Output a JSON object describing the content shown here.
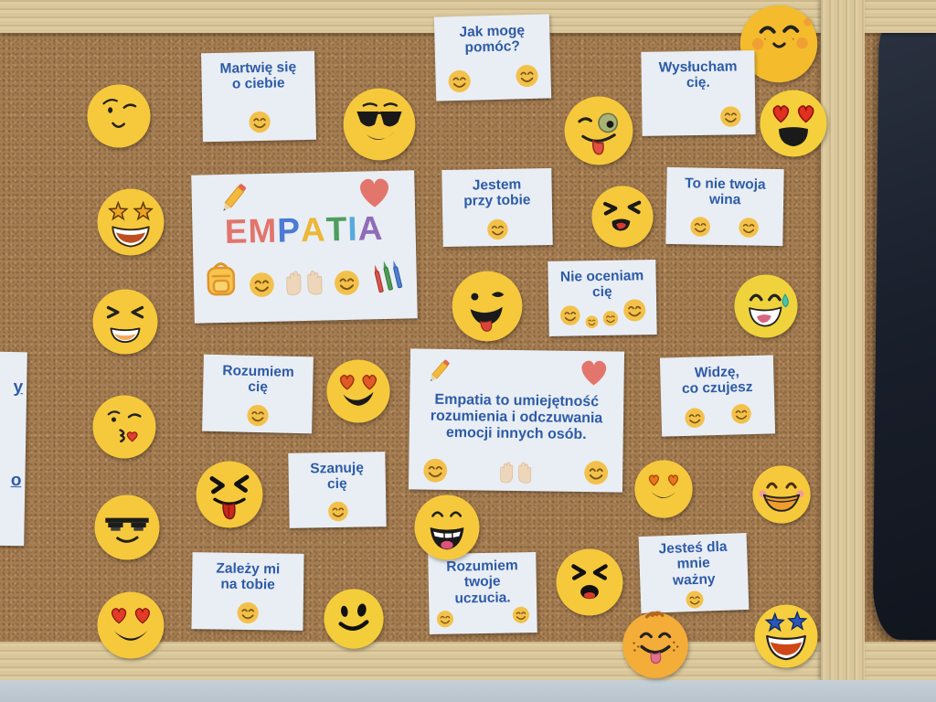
{
  "board": {
    "title_card": {
      "title": "EMPATIA",
      "letters": [
        {
          "char": "E",
          "color": "#e2756b"
        },
        {
          "char": "M",
          "color": "#e2756b"
        },
        {
          "char": "P",
          "color": "#4b7bd4"
        },
        {
          "char": "A",
          "color": "#edb737"
        },
        {
          "char": "T",
          "color": "#4d9e5f"
        },
        {
          "char": "I",
          "color": "#58a9dd"
        },
        {
          "char": "A",
          "color": "#8f6cb8"
        }
      ]
    },
    "cards": {
      "martwie": {
        "text": "Martwię się\no ciebie"
      },
      "jak_moge": {
        "text": "Jak mogę\npomóc?"
      },
      "wyslucham": {
        "text": "Wysłucham\ncię."
      },
      "jestem": {
        "text": "Jestem\nprzy tobie"
      },
      "to_nie": {
        "text": "To nie twoja\nwina"
      },
      "nie_oceniam": {
        "text": "Nie oceniam\ncię"
      },
      "rozumiem": {
        "text": "Rozumiem\ncię"
      },
      "widze": {
        "text": "Widzę,\nco czujesz"
      },
      "szanuje": {
        "text": "Szanuję\ncię"
      },
      "zalezy": {
        "text": "Zależy mi\nna tobie"
      },
      "rozumiem_uczucia": {
        "text": "Rozumiem\ntwoje\nuczucia."
      },
      "jestes": {
        "text": "Jesteś dla\nmnie\nważny"
      }
    },
    "definition_card": {
      "text": "Empatia to umiejętność\nrozumienia i odczuwania\nemocji innych osób."
    },
    "partial_card": {
      "fragment_top": "y",
      "fragment_bottom": "o"
    },
    "icons": {
      "pencil": "pencil-icon",
      "heart": "heart-icon",
      "backpack": "backpack-icon",
      "open_hands": "open-hands-icon",
      "crayons": "crayons-icon",
      "card_smiley": "smiling-face-icon"
    },
    "emojis": [
      {
        "name": "winking-face"
      },
      {
        "name": "star-struck-face"
      },
      {
        "name": "laughing-xd-face"
      },
      {
        "name": "face-blowing-kiss"
      },
      {
        "name": "pixel-sunglasses-face"
      },
      {
        "name": "heart-eyes-face"
      },
      {
        "name": "cool-sunglasses-face"
      },
      {
        "name": "zany-wink-tongue-face"
      },
      {
        "name": "blushing-smile-face"
      },
      {
        "name": "heart-eyes-open-mouth-face"
      },
      {
        "name": "squinting-tongue-face"
      },
      {
        "name": "winking-tongue-out-face"
      },
      {
        "name": "laughing-sweat-drop-face"
      },
      {
        "name": "heart-eyes-grin-face"
      },
      {
        "name": "squinting-red-tongue-face"
      },
      {
        "name": "laughing-teeth-tongue-face"
      },
      {
        "name": "xd-laughing-small-tongue-face"
      },
      {
        "name": "heart-eyes-smirk-face"
      },
      {
        "name": "grinning-teeth-blush-face"
      },
      {
        "name": "classic-smiley-face"
      },
      {
        "name": "freckled-hair-tongue-face"
      },
      {
        "name": "star-eyes-open-mouth-face"
      }
    ],
    "colors": {
      "cork": "#a57d52",
      "wood": "#d9c79b",
      "card_paper": "#e9eef4",
      "card_text": "#2d5ba8",
      "emoji_paper": "#f6c93c",
      "poster": "#1a202c",
      "wall": "#c6d0d8"
    }
  }
}
